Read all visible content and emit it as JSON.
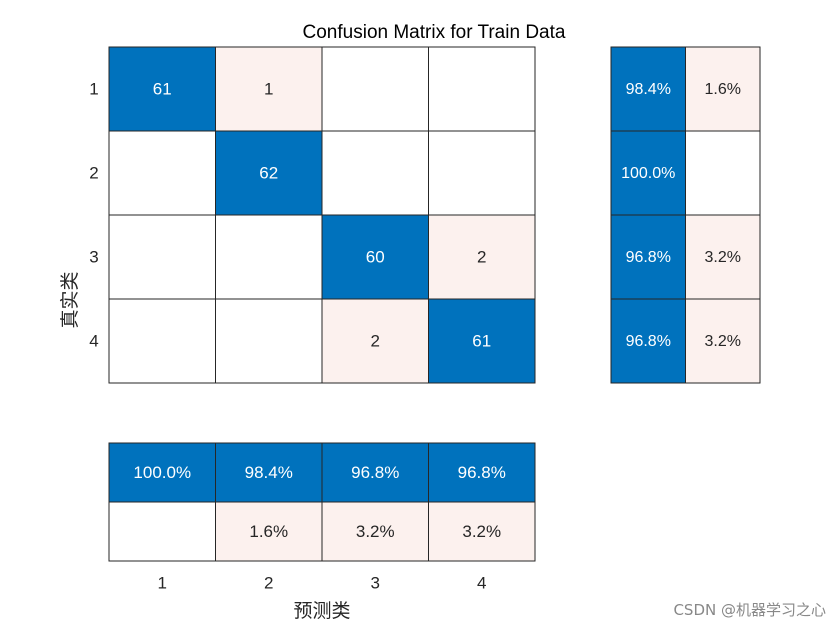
{
  "chart_data": {
    "type": "heatmap",
    "title": "Confusion Matrix for Train Data",
    "xlabel": "预测类",
    "ylabel": "真实类",
    "classes": [
      "1",
      "2",
      "3",
      "4"
    ],
    "matrix": [
      [
        61,
        1,
        0,
        0
      ],
      [
        0,
        62,
        0,
        0
      ],
      [
        0,
        0,
        60,
        2
      ],
      [
        0,
        0,
        2,
        61
      ]
    ],
    "row_summary": [
      [
        "98.4%",
        "1.6%"
      ],
      [
        "100.0%",
        ""
      ],
      [
        "96.8%",
        "3.2%"
      ],
      [
        "96.8%",
        "3.2%"
      ]
    ],
    "column_summary": [
      [
        "100.0%",
        "98.4%",
        "96.8%",
        "96.8%"
      ],
      [
        "",
        "1.6%",
        "3.2%",
        "3.2%"
      ]
    ],
    "colors": {
      "correct": "#0072BD",
      "incorrect": "#FCF1EE",
      "empty": "#FFFFFF",
      "border": "#262626"
    }
  },
  "watermark": "CSDN @机器学习之心"
}
